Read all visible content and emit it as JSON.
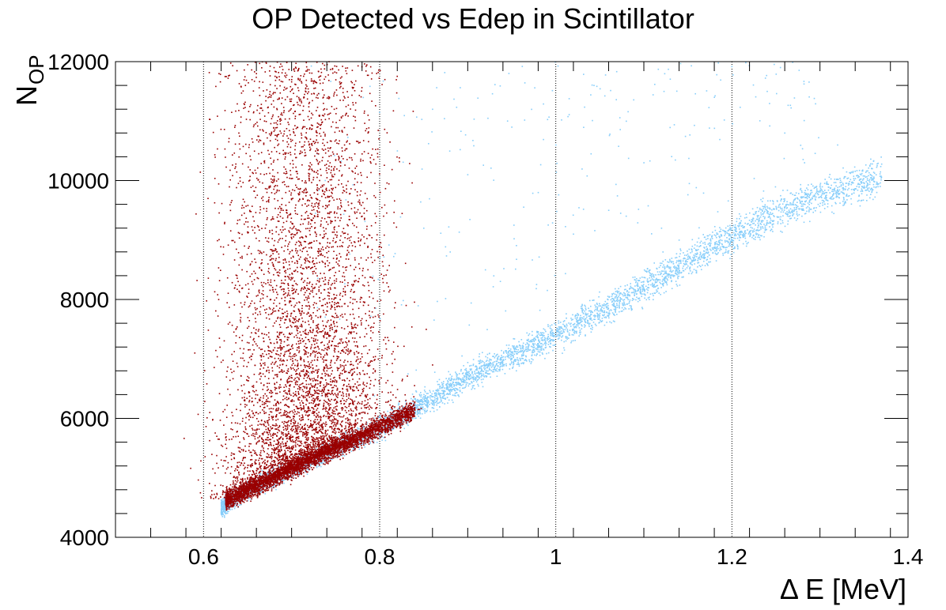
{
  "chart_data": {
    "type": "scatter",
    "title": "OP Detected vs Edep in Scintillator",
    "xlabel": "Δ E [MeV]",
    "ylabel": {
      "base": "N",
      "sub": "OP"
    },
    "xlim": [
      0.5,
      1.4
    ],
    "ylim": [
      4000,
      12000
    ],
    "x_ticks": [
      0.6,
      0.8,
      1.0,
      1.2,
      1.4
    ],
    "x_tick_labels": [
      "0.6",
      "0.8",
      "1",
      "1.2",
      "1.4"
    ],
    "y_ticks": [
      4000,
      6000,
      8000,
      10000,
      12000
    ],
    "y_tick_labels": [
      "4000",
      "6000",
      "8000",
      "10000",
      "12000"
    ],
    "grid": {
      "x": true,
      "y": false,
      "style": "dotted"
    },
    "colors": {
      "series_a": "#990000",
      "series_b": "#87cefa"
    },
    "series": [
      {
        "color": "#87cefa",
        "band": {
          "x": [
            0.62,
            0.65,
            0.7,
            0.75,
            0.8,
            0.85,
            0.9,
            0.95,
            1.0,
            1.05,
            1.1,
            1.15,
            1.2,
            1.25,
            1.3,
            1.37
          ],
          "y": [
            4500,
            4800,
            5150,
            5500,
            5850,
            6250,
            6700,
            7050,
            7400,
            7800,
            8200,
            8650,
            9050,
            9450,
            9750,
            10050
          ]
        },
        "points": [
          [
            0.95,
            10900
          ],
          [
            1.0,
            10600
          ],
          [
            1.04,
            10450
          ],
          [
            1.08,
            11000
          ],
          [
            1.1,
            10300
          ],
          [
            0.9,
            10100
          ],
          [
            0.98,
            9800
          ],
          [
            1.06,
            9500
          ],
          [
            1.12,
            9200
          ],
          [
            1.18,
            11400
          ],
          [
            1.24,
            11500
          ],
          [
            1.26,
            10800
          ],
          [
            1.32,
            10600
          ],
          [
            0.85,
            9200
          ],
          [
            0.88,
            8800
          ],
          [
            0.92,
            8500
          ],
          [
            1.02,
            9100
          ],
          [
            1.14,
            9000
          ],
          [
            0.82,
            10500
          ],
          [
            0.86,
            11200
          ]
        ]
      },
      {
        "color": "#990000",
        "band": {
          "x": [
            0.63,
            0.65,
            0.68,
            0.7,
            0.72,
            0.75,
            0.78,
            0.8,
            0.82,
            0.84
          ],
          "y": [
            4650,
            4800,
            5000,
            5150,
            5300,
            5500,
            5700,
            5850,
            6000,
            6150
          ]
        },
        "cloud_core": {
          "x_center": 0.715,
          "x_spread": 0.045,
          "y_range": [
            4700,
            12000
          ]
        },
        "points": [
          [
            0.605,
            9700
          ],
          [
            0.62,
            5300
          ],
          [
            0.63,
            6400
          ],
          [
            0.64,
            10800
          ],
          [
            0.66,
            11800
          ],
          [
            0.67,
            9200
          ],
          [
            0.68,
            11900
          ],
          [
            0.7,
            11700
          ],
          [
            0.72,
            10000
          ],
          [
            0.74,
            11200
          ],
          [
            0.76,
            10600
          ],
          [
            0.78,
            9400
          ],
          [
            0.8,
            8800
          ],
          [
            0.83,
            7900
          ],
          [
            0.86,
            6900
          ]
        ]
      }
    ]
  }
}
